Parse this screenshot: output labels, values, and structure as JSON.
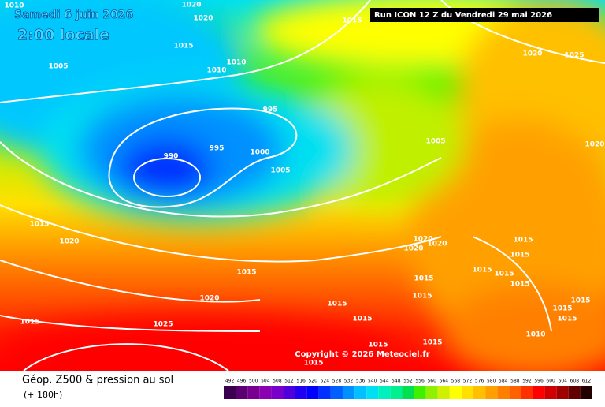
{
  "header": {
    "date": "Samedi 6 juin 2026",
    "time": "2:00 locale",
    "run": "Run ICON 12 Z du Vendredi 29 mai 2026"
  },
  "isobar_labels": [
    1010,
    1020,
    1020,
    1015,
    1015,
    1005,
    1010,
    1010,
    995,
    990,
    995,
    1000,
    1005,
    1005,
    1020,
    1025,
    1020,
    1015,
    1020,
    1015,
    1020,
    1020,
    1020,
    1015,
    1015,
    1015,
    1015,
    1015,
    1015,
    1015,
    1015,
    1015,
    1015,
    1015,
    1015,
    1020,
    1015,
    1025,
    1010,
    1015,
    1015,
    1015
  ],
  "copyright": "Copyright © 2026 Meteociel.fr",
  "legend": {
    "title": "Géop. Z500 & pression au sol",
    "subtitle": "(+ 180h)",
    "values": [
      492,
      496,
      500,
      504,
      508,
      512,
      516,
      520,
      524,
      528,
      532,
      536,
      540,
      544,
      548,
      552,
      556,
      560,
      564,
      568,
      572,
      576,
      580,
      584,
      588,
      592,
      596,
      600,
      604,
      608,
      612
    ],
    "colors": [
      "#3c0050",
      "#5a0070",
      "#780090",
      "#8c00b4",
      "#7800c8",
      "#5000dc",
      "#2000f0",
      "#0000ff",
      "#0030ff",
      "#0060ff",
      "#0090ff",
      "#00c0ff",
      "#00e0f0",
      "#00f0c0",
      "#00f090",
      "#00e050",
      "#40f000",
      "#90f000",
      "#d0f000",
      "#ffff00",
      "#ffe000",
      "#ffc000",
      "#ffa000",
      "#ff8000",
      "#ff6000",
      "#ff3000",
      "#ff0000",
      "#d00000",
      "#a00000",
      "#600000",
      "#200000"
    ]
  }
}
